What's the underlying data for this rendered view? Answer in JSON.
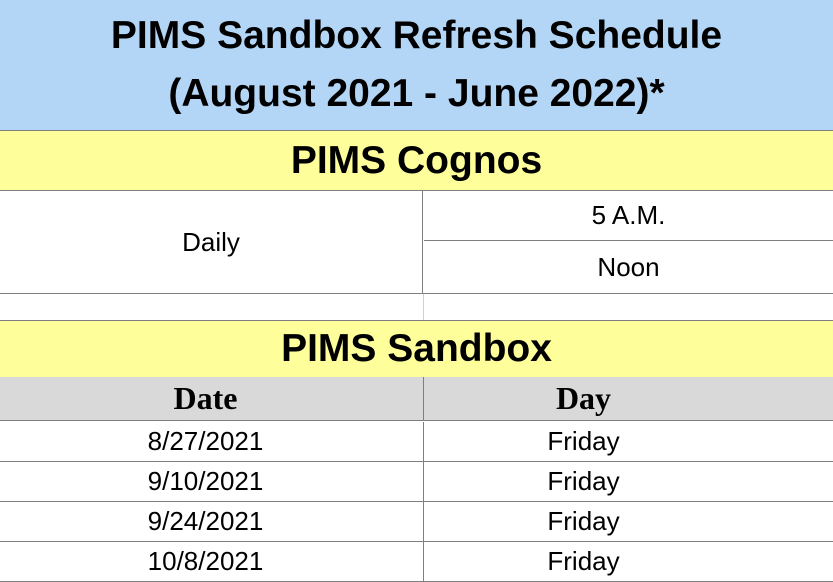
{
  "title": {
    "line1": "PIMS Sandbox Refresh Schedule",
    "line2": "(August 2021 - June 2022)*"
  },
  "cognos": {
    "heading": "PIMS Cognos",
    "frequency": "Daily",
    "times": [
      "5 A.M.",
      "Noon"
    ]
  },
  "sandbox": {
    "heading": "PIMS Sandbox",
    "columns": [
      "Date",
      "Day"
    ],
    "rows": [
      {
        "date": "8/27/2021",
        "day": "Friday"
      },
      {
        "date": "9/10/2021",
        "day": "Friday"
      },
      {
        "date": "9/24/2021",
        "day": "Friday"
      },
      {
        "date": "10/8/2021",
        "day": "Friday"
      }
    ]
  },
  "colors": {
    "title_bg": "#b4d6f6",
    "band_bg": "#fefe9a",
    "header_bg": "#d9d9d9"
  }
}
